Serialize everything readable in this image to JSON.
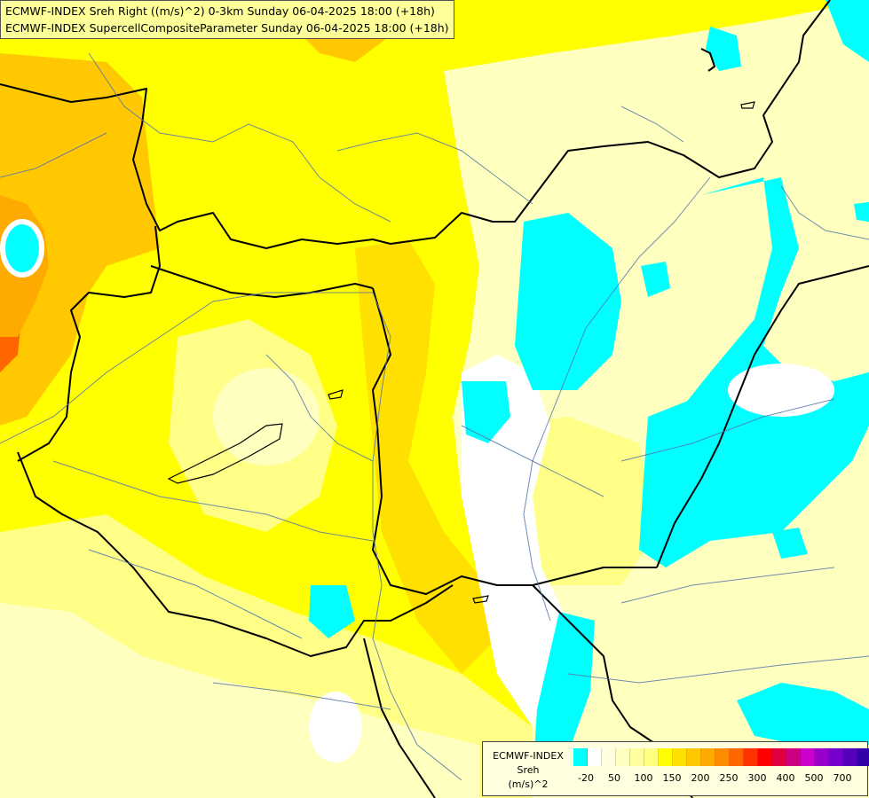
{
  "map": {
    "title_lines": [
      "ECMWF-INDEX Sreh Right ((m/s)^2) 0-3km Sunday 06-04-2025 18:00 (+18h)",
      "ECMWF-INDEX SupercellCompositeParameter Sunday 06-04-2025 18:00 (+18h)"
    ],
    "colors": {
      "cyan": "#00ffff",
      "white": "#ffffff",
      "light_yellow": "#ffffc0",
      "pale_yellow": "#ffff88",
      "yellow": "#ffff00",
      "gold": "#ffe000",
      "orange_light": "#ffc800",
      "orange": "#ffaa00",
      "red_orange": "#ff6600",
      "border": "#000000",
      "river": "#5577aa"
    }
  },
  "legend": {
    "model": "ECMWF-INDEX",
    "parameter": "Sreh",
    "unit": "(m/s)^2",
    "swatch_colors": [
      "#00ffff",
      "#ffffff",
      "#ffffe0",
      "#ffffc0",
      "#ffffa0",
      "#ffff80",
      "#ffff00",
      "#ffe000",
      "#ffc800",
      "#ffaa00",
      "#ff8c00",
      "#ff6600",
      "#ff3300",
      "#ff0000",
      "#e00040",
      "#cc0080",
      "#cc00cc",
      "#9900cc",
      "#7700cc",
      "#5500bb",
      "#3300aa",
      "#000080"
    ],
    "tick_labels": [
      "-20",
      "50",
      "100",
      "150",
      "200",
      "250",
      "300",
      "400",
      "500",
      "700"
    ]
  }
}
